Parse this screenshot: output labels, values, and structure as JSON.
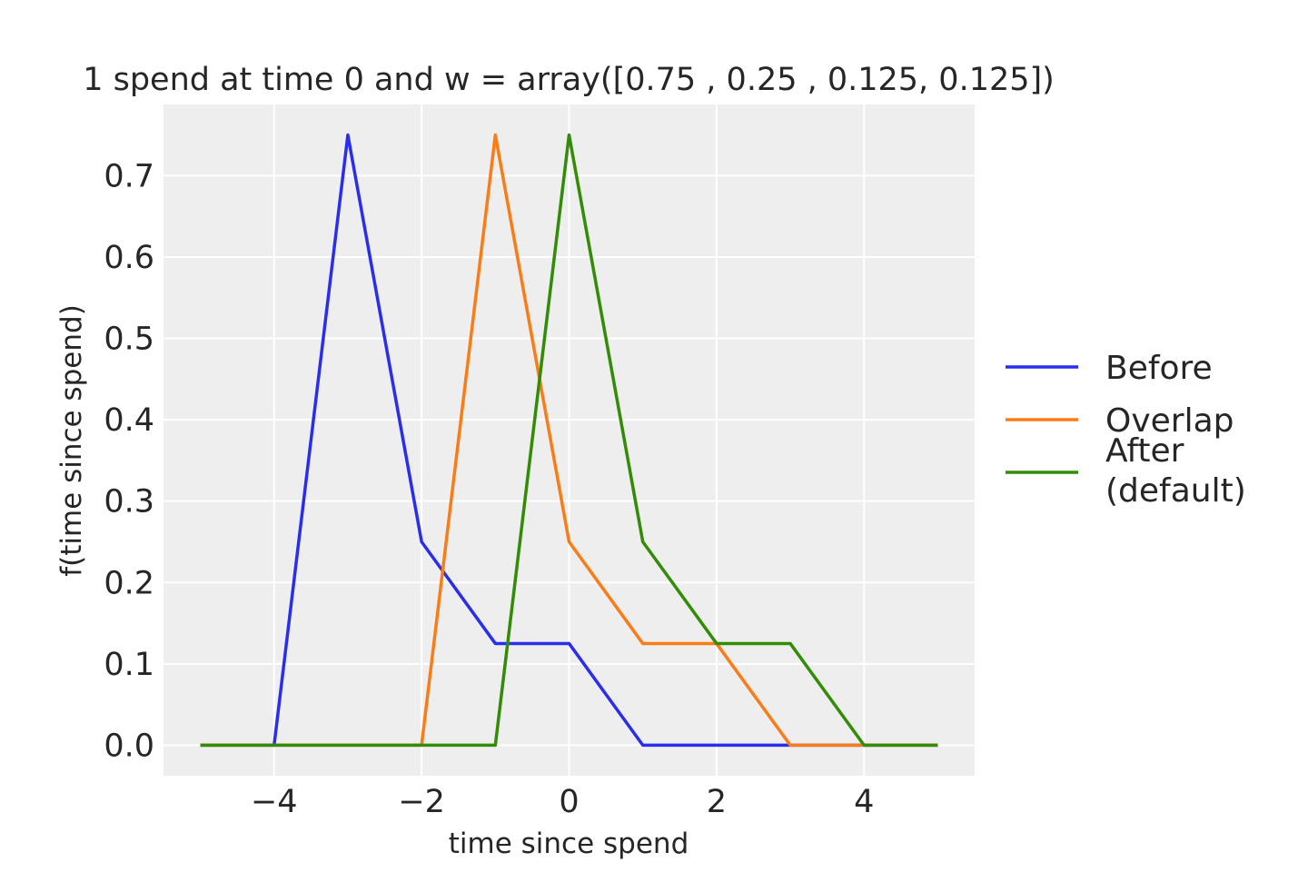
{
  "chart_data": {
    "type": "line",
    "title": "1 spend at time 0 and w = array([0.75 , 0.25 , 0.125, 0.125])",
    "xlabel": "time since spend",
    "ylabel": "f(time since spend)",
    "xlim": [
      -5.5,
      5.5
    ],
    "ylim": [
      -0.0375,
      0.7875
    ],
    "xticks": [
      -4,
      -2,
      0,
      2,
      4
    ],
    "xtick_labels": [
      "−4",
      "−2",
      "0",
      "2",
      "4"
    ],
    "yticks": [
      0.0,
      0.1,
      0.2,
      0.3,
      0.4,
      0.5,
      0.6,
      0.7
    ],
    "ytick_labels": [
      "0.0",
      "0.1",
      "0.2",
      "0.3",
      "0.4",
      "0.5",
      "0.6",
      "0.7"
    ],
    "grid": true,
    "background": "#eeeeee",
    "legend_position": "right-outside",
    "x": [
      -5,
      -4,
      -3,
      -2,
      -1,
      0,
      1,
      2,
      3,
      4,
      5
    ],
    "series": [
      {
        "name": "Before",
        "color": "#2a2eec",
        "values": [
          0,
          0,
          0.75,
          0.25,
          0.125,
          0.125,
          0,
          0,
          0,
          0,
          0
        ]
      },
      {
        "name": "Overlap",
        "color": "#fa7c17",
        "values": [
          0,
          0,
          0,
          0,
          0.75,
          0.25,
          0.125,
          0.125,
          0,
          0,
          0
        ]
      },
      {
        "name": "After\n(default)",
        "color": "#328c06",
        "values": [
          0,
          0,
          0,
          0,
          0,
          0.75,
          0.25,
          0.125,
          0.125,
          0,
          0
        ]
      }
    ]
  }
}
